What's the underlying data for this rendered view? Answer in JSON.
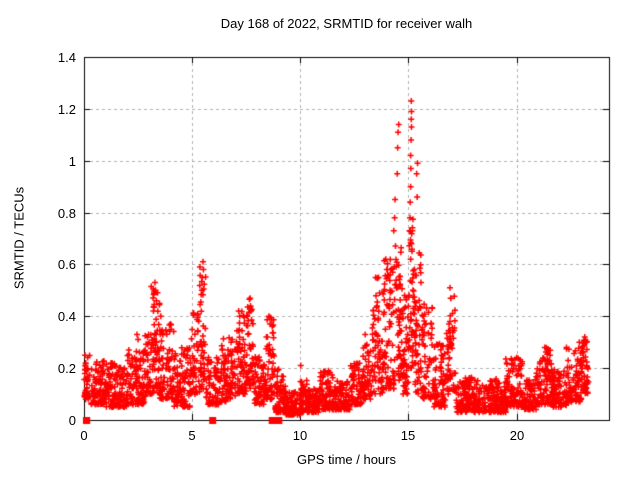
{
  "window": {
    "title": "Day 168 of 2022, SRMTID for receiver walh"
  },
  "chart_data": {
    "type": "scatter",
    "title": "Day 168 of 2022, SRMTID for receiver walh",
    "xlabel": "GPS time / hours",
    "ylabel": "SRMTID / TECUs",
    "xlim": [
      0,
      24.27
    ],
    "ylim": [
      0,
      1.4
    ],
    "xticks": [
      0,
      5,
      10,
      15,
      20
    ],
    "xtick_labels": [
      "0",
      "5",
      "10",
      "15",
      "20"
    ],
    "yticks": [
      0,
      0.2,
      0.4,
      0.6,
      0.8,
      1,
      1.2,
      1.4
    ],
    "ytick_labels": [
      "0",
      "0.2",
      "0.4",
      "0.6",
      "0.8",
      "1",
      "1.2",
      "1.4"
    ],
    "grid": true,
    "legend_position": "none",
    "marker": "plus",
    "marker_size_px": 7,
    "colors": {
      "marker": "#ff0000",
      "grid": "#b0b0b0",
      "frame": "#000000",
      "background": "#ffffff",
      "text": "#000000"
    },
    "seed": 1337,
    "band_segments": [
      [
        0.0,
        0.3,
        0.08,
        0.26,
        40,
        1.5
      ],
      [
        0.3,
        1.0,
        0.06,
        0.23,
        90,
        1.6
      ],
      [
        1.0,
        2.0,
        0.05,
        0.22,
        130,
        1.6
      ],
      [
        2.0,
        2.8,
        0.06,
        0.28,
        105,
        1.5
      ],
      [
        2.8,
        3.1,
        0.09,
        0.33,
        40,
        1.5
      ],
      [
        3.1,
        3.5,
        0.1,
        0.53,
        60,
        1.3
      ],
      [
        3.5,
        3.9,
        0.08,
        0.35,
        50,
        1.5
      ],
      [
        3.9,
        4.15,
        0.08,
        0.37,
        32,
        1.4
      ],
      [
        4.15,
        4.9,
        0.05,
        0.28,
        90,
        1.6
      ],
      [
        4.9,
        5.35,
        0.1,
        0.42,
        55,
        1.4
      ],
      [
        5.35,
        5.65,
        0.12,
        0.61,
        45,
        1.3
      ],
      [
        5.65,
        6.3,
        0.06,
        0.25,
        80,
        1.6
      ],
      [
        6.3,
        7.0,
        0.07,
        0.32,
        90,
        1.5
      ],
      [
        7.0,
        7.5,
        0.1,
        0.42,
        65,
        1.4
      ],
      [
        7.5,
        7.85,
        0.12,
        0.47,
        50,
        1.3
      ],
      [
        7.85,
        8.4,
        0.06,
        0.25,
        68,
        1.6
      ],
      [
        8.4,
        8.8,
        0.08,
        0.4,
        55,
        1.4
      ],
      [
        8.8,
        9.3,
        0.03,
        0.2,
        60,
        1.7
      ],
      [
        9.3,
        10.0,
        0.02,
        0.12,
        85,
        1.6
      ],
      [
        10.0,
        10.3,
        0.03,
        0.16,
        36,
        1.6
      ],
      [
        10.3,
        10.85,
        0.03,
        0.12,
        66,
        1.6
      ],
      [
        10.85,
        11.55,
        0.04,
        0.19,
        85,
        1.6
      ],
      [
        11.55,
        12.3,
        0.04,
        0.15,
        90,
        1.7
      ],
      [
        12.3,
        12.85,
        0.06,
        0.22,
        66,
        1.6
      ],
      [
        12.85,
        13.3,
        0.08,
        0.3,
        56,
        1.5
      ],
      [
        13.3,
        13.85,
        0.1,
        0.55,
        75,
        1.4
      ],
      [
        13.85,
        14.35,
        0.12,
        0.63,
        70,
        1.4
      ],
      [
        14.35,
        14.75,
        0.15,
        0.68,
        60,
        1.3
      ],
      [
        14.75,
        15.02,
        0.1,
        0.55,
        40,
        1.4
      ],
      [
        15.02,
        15.28,
        0.2,
        0.78,
        45,
        1.1
      ],
      [
        15.28,
        15.62,
        0.1,
        0.65,
        48,
        1.3
      ],
      [
        15.62,
        16.15,
        0.08,
        0.45,
        66,
        1.4
      ],
      [
        16.15,
        16.75,
        0.05,
        0.3,
        75,
        1.5
      ],
      [
        16.75,
        17.2,
        0.1,
        0.48,
        56,
        1.3
      ],
      [
        17.2,
        18.0,
        0.03,
        0.17,
        96,
        1.6
      ],
      [
        18.0,
        19.5,
        0.03,
        0.16,
        180,
        1.7
      ],
      [
        19.5,
        20.3,
        0.05,
        0.24,
        100,
        1.6
      ],
      [
        20.3,
        20.9,
        0.04,
        0.16,
        76,
        1.6
      ],
      [
        20.9,
        21.6,
        0.06,
        0.28,
        86,
        1.5
      ],
      [
        21.6,
        22.3,
        0.05,
        0.2,
        86,
        1.6
      ],
      [
        22.3,
        23.0,
        0.07,
        0.28,
        86,
        1.5
      ],
      [
        23.0,
        23.35,
        0.1,
        0.32,
        46,
        1.3
      ]
    ],
    "outlier_points": [
      [
        0.05,
        0.25
      ],
      [
        0.08,
        0.22
      ],
      [
        2.45,
        0.33
      ],
      [
        2.5,
        0.31
      ],
      [
        3.28,
        0.53
      ],
      [
        3.31,
        0.5
      ],
      [
        3.24,
        0.49
      ],
      [
        3.35,
        0.46
      ],
      [
        3.55,
        0.4
      ],
      [
        4.0,
        0.37
      ],
      [
        4.03,
        0.35
      ],
      [
        5.5,
        0.61
      ],
      [
        5.52,
        0.58
      ],
      [
        5.47,
        0.55
      ],
      [
        5.45,
        0.5
      ],
      [
        7.15,
        0.42
      ],
      [
        7.2,
        0.4
      ],
      [
        7.68,
        0.47
      ],
      [
        7.7,
        0.44
      ],
      [
        7.72,
        0.42
      ],
      [
        8.55,
        0.4
      ],
      [
        8.6,
        0.37
      ],
      [
        10.02,
        0.21
      ],
      [
        11.3,
        0.19
      ],
      [
        13.0,
        0.33
      ],
      [
        13.95,
        0.62
      ],
      [
        14.0,
        0.58
      ],
      [
        14.32,
        0.73
      ],
      [
        14.36,
        0.78
      ],
      [
        14.38,
        0.85
      ],
      [
        14.48,
        0.95
      ],
      [
        14.5,
        1.05
      ],
      [
        14.52,
        1.11
      ],
      [
        14.55,
        1.14
      ],
      [
        15.05,
        0.73
      ],
      [
        15.07,
        0.78
      ],
      [
        15.08,
        0.84
      ],
      [
        15.1,
        0.9
      ],
      [
        15.11,
        0.97
      ],
      [
        15.1,
        1.02
      ],
      [
        15.12,
        1.08
      ],
      [
        15.14,
        1.13
      ],
      [
        15.13,
        1.16
      ],
      [
        15.14,
        1.19
      ],
      [
        15.13,
        1.23
      ],
      [
        15.18,
        0.73
      ],
      [
        15.38,
        0.95
      ],
      [
        15.42,
        0.99
      ],
      [
        15.4,
        0.86
      ],
      [
        16.92,
        0.51
      ],
      [
        16.95,
        0.47
      ],
      [
        20.0,
        0.24
      ],
      [
        21.3,
        0.28
      ],
      [
        22.9,
        0.3
      ],
      [
        23.15,
        0.32
      ],
      [
        23.2,
        0.3
      ]
    ],
    "zero_clusters": [
      [
        0.12,
        0.15
      ],
      [
        5.95,
        0.1
      ],
      [
        8.7,
        0.1
      ],
      [
        9.0,
        0.15
      ]
    ],
    "peak_annotation": {
      "x": 15.1,
      "y": 1.23
    }
  }
}
